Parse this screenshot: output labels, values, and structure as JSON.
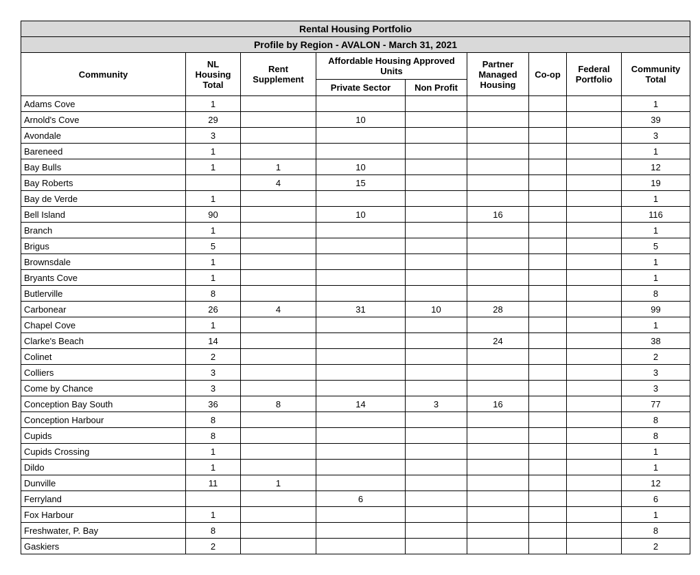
{
  "title1": "Rental Housing Portfolio",
  "title2": "Profile by Region - AVALON - March 31, 2021",
  "columns": {
    "community": "Community",
    "nlHousing": "NL Housing Total",
    "rentSupp": "Rent Supplement",
    "affordable": "Affordable Housing Approved Units",
    "privateSector": "Private Sector",
    "nonProfit": "Non Profit",
    "partner": "Partner Managed Housing",
    "coop": "Co-op",
    "federal": "Federal Portfolio",
    "commTotal": "Community Total"
  },
  "widths": {
    "community": 240,
    "nlHousing": 80,
    "rentSupp": 110,
    "privateSector": 130,
    "nonProfit": 90,
    "partner": 90,
    "coop": 55,
    "federal": 80,
    "commTotal": 100
  },
  "rows": [
    {
      "c": "Adams Cove",
      "v": [
        "1",
        "",
        "",
        "",
        "",
        "",
        "",
        "1"
      ]
    },
    {
      "c": "Arnold's Cove",
      "v": [
        "29",
        "",
        "10",
        "",
        "",
        "",
        "",
        "39"
      ]
    },
    {
      "c": "Avondale",
      "v": [
        "3",
        "",
        "",
        "",
        "",
        "",
        "",
        "3"
      ]
    },
    {
      "c": "Bareneed",
      "v": [
        "1",
        "",
        "",
        "",
        "",
        "",
        "",
        "1"
      ]
    },
    {
      "c": "Bay Bulls",
      "v": [
        "1",
        "1",
        "10",
        "",
        "",
        "",
        "",
        "12"
      ]
    },
    {
      "c": "Bay Roberts",
      "v": [
        "",
        "4",
        "15",
        "",
        "",
        "",
        "",
        "19"
      ]
    },
    {
      "c": "Bay de Verde",
      "v": [
        "1",
        "",
        "",
        "",
        "",
        "",
        "",
        "1"
      ]
    },
    {
      "c": "Bell Island",
      "v": [
        "90",
        "",
        "10",
        "",
        "16",
        "",
        "",
        "116"
      ]
    },
    {
      "c": "Branch",
      "v": [
        "1",
        "",
        "",
        "",
        "",
        "",
        "",
        "1"
      ]
    },
    {
      "c": "Brigus",
      "v": [
        "5",
        "",
        "",
        "",
        "",
        "",
        "",
        "5"
      ]
    },
    {
      "c": "Brownsdale",
      "v": [
        "1",
        "",
        "",
        "",
        "",
        "",
        "",
        "1"
      ]
    },
    {
      "c": "Bryants Cove",
      "v": [
        "1",
        "",
        "",
        "",
        "",
        "",
        "",
        "1"
      ]
    },
    {
      "c": "Butlerville",
      "v": [
        "8",
        "",
        "",
        "",
        "",
        "",
        "",
        "8"
      ]
    },
    {
      "c": "Carbonear",
      "v": [
        "26",
        "4",
        "31",
        "10",
        "28",
        "",
        "",
        "99"
      ]
    },
    {
      "c": "Chapel Cove",
      "v": [
        "1",
        "",
        "",
        "",
        "",
        "",
        "",
        "1"
      ]
    },
    {
      "c": "Clarke's Beach",
      "v": [
        "14",
        "",
        "",
        "",
        "24",
        "",
        "",
        "38"
      ]
    },
    {
      "c": "Colinet",
      "v": [
        "2",
        "",
        "",
        "",
        "",
        "",
        "",
        "2"
      ]
    },
    {
      "c": "Colliers",
      "v": [
        "3",
        "",
        "",
        "",
        "",
        "",
        "",
        "3"
      ]
    },
    {
      "c": "Come by Chance",
      "v": [
        "3",
        "",
        "",
        "",
        "",
        "",
        "",
        "3"
      ]
    },
    {
      "c": "Conception Bay South",
      "v": [
        "36",
        "8",
        "14",
        "3",
        "16",
        "",
        "",
        "77"
      ]
    },
    {
      "c": "Conception Harbour",
      "v": [
        "8",
        "",
        "",
        "",
        "",
        "",
        "",
        "8"
      ]
    },
    {
      "c": "Cupids",
      "v": [
        "8",
        "",
        "",
        "",
        "",
        "",
        "",
        "8"
      ]
    },
    {
      "c": "Cupids Crossing",
      "v": [
        "1",
        "",
        "",
        "",
        "",
        "",
        "",
        "1"
      ]
    },
    {
      "c": "Dildo",
      "v": [
        "1",
        "",
        "",
        "",
        "",
        "",
        "",
        "1"
      ]
    },
    {
      "c": "Dunville",
      "v": [
        "11",
        "1",
        "",
        "",
        "",
        "",
        "",
        "12"
      ]
    },
    {
      "c": "Ferryland",
      "v": [
        "",
        "",
        "6",
        "",
        "",
        "",
        "",
        "6"
      ]
    },
    {
      "c": "Fox Harbour",
      "v": [
        "1",
        "",
        "",
        "",
        "",
        "",
        "",
        "1"
      ]
    },
    {
      "c": "Freshwater, P. Bay",
      "v": [
        "8",
        "",
        "",
        "",
        "",
        "",
        "",
        "8"
      ]
    },
    {
      "c": "Gaskiers",
      "v": [
        "2",
        "",
        "",
        "",
        "",
        "",
        "",
        "2"
      ]
    }
  ]
}
